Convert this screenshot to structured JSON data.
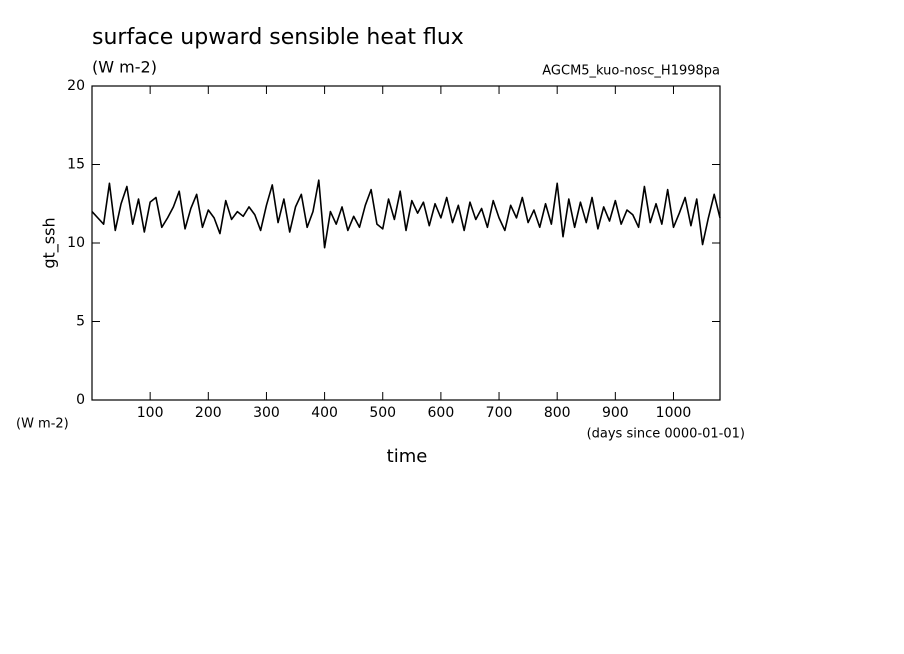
{
  "chart_data": {
    "type": "line",
    "title": "surface upward sensible heat flux",
    "subtitle": "(W m-2)",
    "annotation": "AGCM5_kuo-nosc_H1998pa",
    "ylabel": "gt_ssh",
    "yunit": "(W m-2)",
    "xlabel": "time",
    "xunit": "(days since 0000-01-01)",
    "xlim": [
      0,
      1080
    ],
    "ylim": [
      0,
      20
    ],
    "xticks": [
      100,
      200,
      300,
      400,
      500,
      600,
      700,
      800,
      900,
      1000
    ],
    "yticks": [
      0,
      5,
      10,
      15,
      20
    ],
    "grid": false,
    "color": "#000000",
    "x": [
      0,
      10,
      20,
      30,
      40,
      50,
      60,
      70,
      80,
      90,
      100,
      110,
      120,
      130,
      140,
      150,
      160,
      170,
      180,
      190,
      200,
      210,
      220,
      230,
      240,
      250,
      260,
      270,
      280,
      290,
      300,
      310,
      320,
      330,
      340,
      350,
      360,
      370,
      380,
      390,
      400,
      410,
      420,
      430,
      440,
      450,
      460,
      470,
      480,
      490,
      500,
      510,
      520,
      530,
      540,
      550,
      560,
      570,
      580,
      590,
      600,
      610,
      620,
      630,
      640,
      650,
      660,
      670,
      680,
      690,
      700,
      710,
      720,
      730,
      740,
      750,
      760,
      770,
      780,
      790,
      800,
      810,
      820,
      830,
      840,
      850,
      860,
      870,
      880,
      890,
      900,
      910,
      920,
      930,
      940,
      950,
      960,
      970,
      980,
      990,
      1000,
      1010,
      1020,
      1030,
      1040,
      1050,
      1060,
      1070,
      1080
    ],
    "values": [
      12.0,
      11.6,
      11.2,
      13.8,
      10.8,
      12.5,
      13.6,
      11.2,
      12.8,
      10.7,
      12.6,
      12.9,
      11.0,
      11.6,
      12.3,
      13.3,
      10.9,
      12.2,
      13.1,
      11.0,
      12.1,
      11.6,
      10.6,
      12.7,
      11.5,
      12.0,
      11.7,
      12.3,
      11.8,
      10.8,
      12.4,
      13.7,
      11.3,
      12.8,
      10.7,
      12.3,
      13.1,
      11.0,
      12.0,
      14.0,
      9.7,
      12.0,
      11.2,
      12.3,
      10.8,
      11.7,
      11.0,
      12.4,
      13.4,
      11.2,
      10.9,
      12.8,
      11.5,
      13.3,
      10.8,
      12.7,
      11.9,
      12.6,
      11.1,
      12.5,
      11.6,
      12.9,
      11.3,
      12.4,
      10.8,
      12.6,
      11.5,
      12.2,
      11.0,
      12.7,
      11.6,
      10.8,
      12.4,
      11.6,
      12.9,
      11.3,
      12.1,
      11.0,
      12.5,
      11.2,
      13.8,
      10.4,
      12.8,
      11.0,
      12.6,
      11.3,
      12.9,
      10.9,
      12.3,
      11.4,
      12.7,
      11.2,
      12.1,
      11.8,
      11.0,
      13.6,
      11.3,
      12.5,
      11.2,
      13.4,
      11.0,
      11.9,
      12.9,
      11.1,
      12.8,
      9.9,
      11.6,
      13.1,
      11.6
    ]
  }
}
